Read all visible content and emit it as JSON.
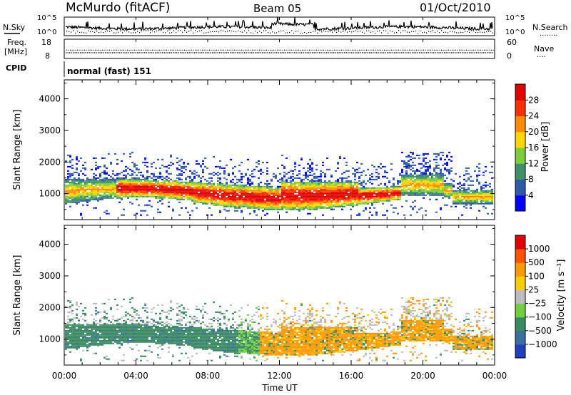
{
  "header": {
    "station": "McMurdo (fitACF)",
    "beam": "Beam 05",
    "date": "01/Oct/2010"
  },
  "noise_panel": {
    "left_label": "N.Sky",
    "right_label": "N.Search",
    "right_label_dots": "........",
    "ticks": [
      {
        "base": "10",
        "exp": "^5"
      },
      {
        "base": "10",
        "exp": "^0"
      }
    ]
  },
  "freq_panel": {
    "left_label_1": "Freq.",
    "left_label_2": "[MHz]",
    "left_ticks": [
      "18",
      "8"
    ],
    "right_label": "Nave",
    "right_label_dots": "....",
    "right_ticks": [
      "60",
      "0"
    ],
    "freq_mhz": 11,
    "nave": 29
  },
  "cpid": {
    "label": "CPID",
    "value": "normal (fast) 151"
  },
  "chart_data": [
    {
      "type": "heatmap",
      "name": "power",
      "ylabel": "Slant Range [km]",
      "ylim": [
        180,
        4600
      ],
      "yticks": [
        "1000",
        "2000",
        "3000",
        "4000"
      ],
      "colorbar": {
        "label": "Power [dB]",
        "ticks": [
          "28",
          "24",
          "20",
          "16",
          "12",
          "8",
          "4"
        ],
        "colors": [
          "#0000ff",
          "#2f5aa8",
          "#3f8f68",
          "#7ccf3a",
          "#ffd600",
          "#ff8c00",
          "#ff3000",
          "#e00000"
        ]
      }
    },
    {
      "type": "heatmap",
      "name": "velocity",
      "ylabel": "Slant Range [km]",
      "ylim": [
        180,
        4600
      ],
      "yticks": [
        "1000",
        "2000",
        "3000",
        "4000"
      ],
      "colorbar": {
        "label": "Velocity  [m s⁻¹]",
        "ticks": [
          "1000",
          "500",
          "100",
          "25",
          "−25",
          "−100",
          "−500",
          "−1000"
        ],
        "colors": [
          "#2040c0",
          "#3a70a0",
          "#3a8a60",
          "#70d040",
          "#bdbdbd",
          "#ffcc00",
          "#ff9900",
          "#ff5500",
          "#e00000"
        ]
      }
    }
  ],
  "time_axis": {
    "label": "Time UT",
    "ticks": [
      "00:00",
      "04:00",
      "08:00",
      "12:00",
      "16:00",
      "20:00",
      "00:00"
    ]
  }
}
